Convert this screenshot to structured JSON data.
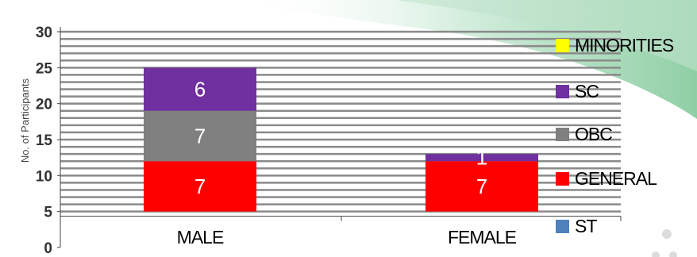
{
  "colors": {
    "background": "#ffffff",
    "swoosh_light": "#cdebd8",
    "swoosh_dark": "#8fcfa5",
    "gridline": "#8a8a8a",
    "axis": "#444444"
  },
  "chart_data": {
    "type": "bar",
    "stacked": true,
    "categories": [
      "MALE",
      "FEMALE"
    ],
    "ylabel": "No. of Participants",
    "xlabel": "",
    "ylim": [
      0,
      30
    ],
    "yticks": [
      0,
      5,
      10,
      15,
      20,
      25,
      30
    ],
    "grid": true,
    "legend_position": "right",
    "series": [
      {
        "name": "ST",
        "color": "#4f81bd",
        "values": [
          0,
          0
        ],
        "labels": [
          "",
          ""
        ]
      },
      {
        "name": "GENERAL",
        "color": "#ff0000",
        "values": [
          7,
          7
        ],
        "labels": [
          "7",
          "7"
        ]
      },
      {
        "name": "OBC",
        "color": "#808080",
        "values": [
          7,
          0
        ],
        "labels": [
          "7",
          ""
        ]
      },
      {
        "name": "SC",
        "color": "#7030a0",
        "values": [
          6,
          1
        ],
        "labels": [
          "6",
          "1"
        ]
      },
      {
        "name": "MINORITIES",
        "color": "#ffff00",
        "values": [
          0,
          0
        ],
        "labels": [
          "",
          ""
        ]
      }
    ],
    "legend": [
      {
        "name": "MINORITIES",
        "color": "#ffff00"
      },
      {
        "name": "SC",
        "color": "#7030a0"
      },
      {
        "name": "OBC",
        "color": "#808080"
      },
      {
        "name": "GENERAL",
        "color": "#ff0000"
      },
      {
        "name": "ST",
        "color": "#4f81bd"
      }
    ]
  }
}
